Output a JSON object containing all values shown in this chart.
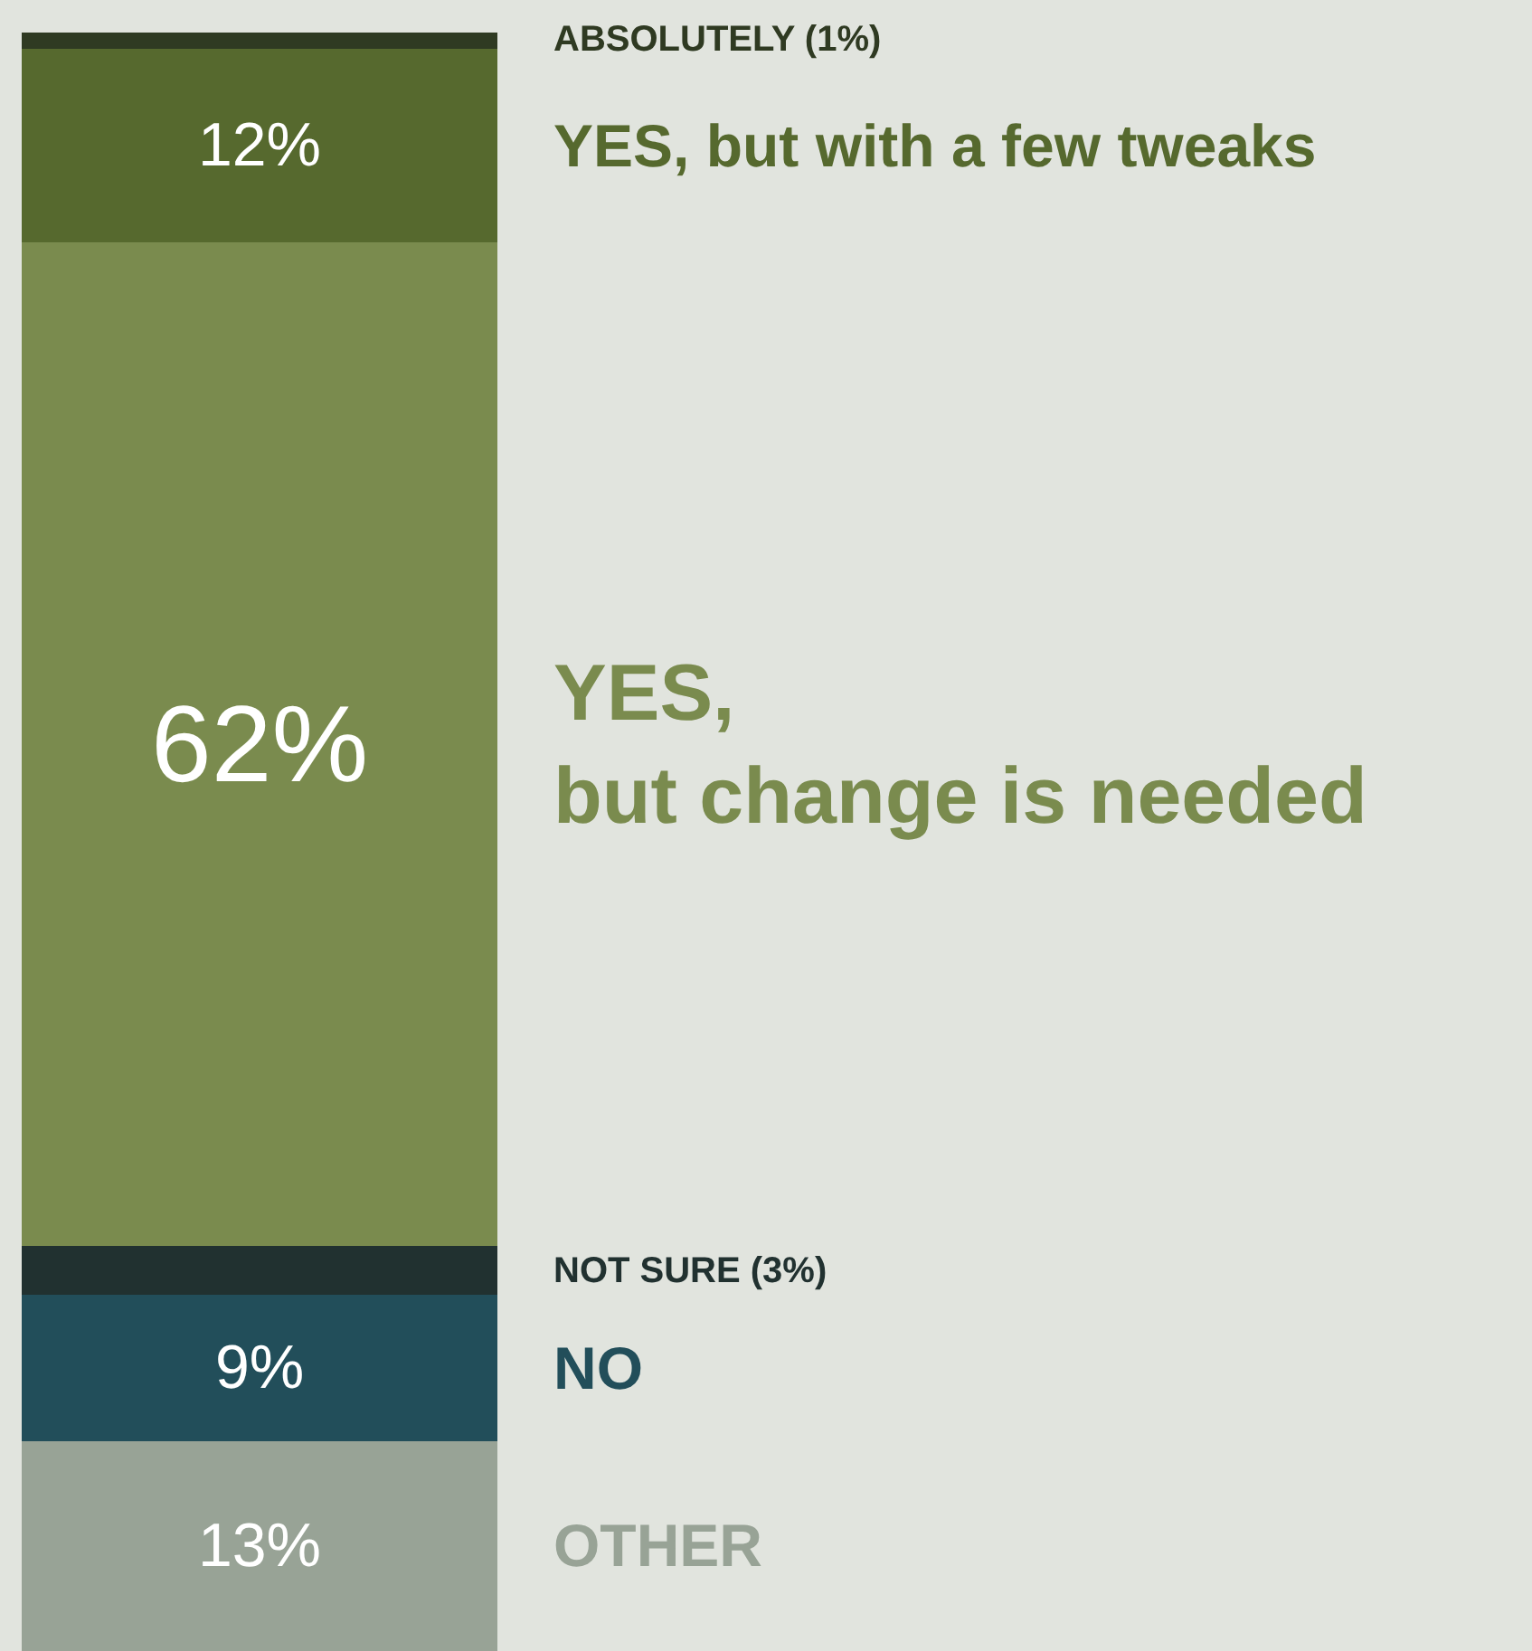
{
  "chart_data": {
    "type": "bar",
    "stacked": true,
    "categories": [
      null
    ],
    "ylim": [
      0,
      100
    ],
    "tick_labels": false,
    "legend": false,
    "series": [
      {
        "name": "OTHER",
        "color": "#98a396",
        "values": [
          13
        ],
        "value_labels": [
          "13%"
        ]
      },
      {
        "name": "NO",
        "color": "#224e5a",
        "values": [
          9
        ],
        "value_labels": [
          "9%"
        ]
      },
      {
        "name": "NOT SURE (3%)",
        "color": "#213130",
        "values": [
          3
        ],
        "value_labels": [
          null
        ]
      },
      {
        "name": "YES,\nbut change is needed",
        "color": "#7a8b4e",
        "values": [
          62
        ],
        "value_labels": [
          "62%"
        ]
      },
      {
        "name": "YES, but with a few tweaks",
        "color": "#56692e",
        "values": [
          12
        ],
        "value_labels": [
          "12%"
        ]
      },
      {
        "name": "ABSOLUTELY (1%)",
        "color": "#2f3a22",
        "values": [
          1
        ],
        "value_labels": [
          null
        ]
      }
    ]
  }
}
